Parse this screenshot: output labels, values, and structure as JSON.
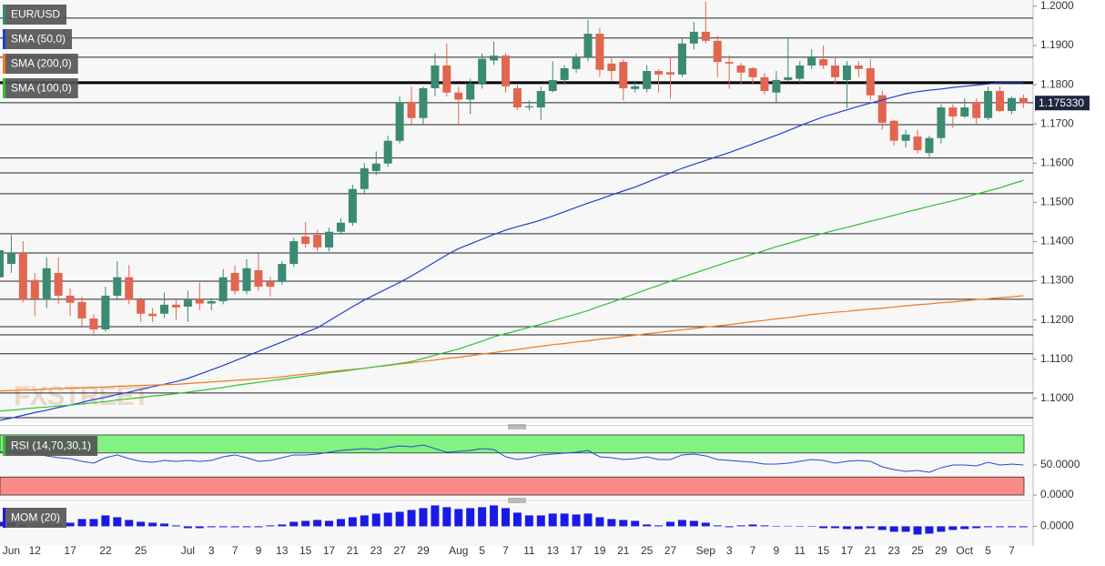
{
  "chart_data": [
    {
      "type": "candlestick",
      "title": "EUR/USD",
      "categories": [
        null,
        "Jun",
        null,
        "12",
        null,
        null,
        "17",
        null,
        null,
        "22",
        null,
        null,
        "25",
        null,
        null,
        null,
        "Jul",
        null,
        "3",
        null,
        "7",
        null,
        "9",
        null,
        "13",
        null,
        "15",
        null,
        "17",
        null,
        "21",
        null,
        "23",
        null,
        "27",
        null,
        "29",
        null,
        null,
        "Aug",
        null,
        "5",
        null,
        "7",
        null,
        "11",
        null,
        "13",
        null,
        "17",
        null,
        "19",
        null,
        "21",
        null,
        "25",
        null,
        "27",
        null,
        null,
        "Sep",
        null,
        "3",
        null,
        "7",
        null,
        "9",
        null,
        "11",
        null,
        "15",
        null,
        "17",
        null,
        "21",
        null,
        "23",
        null,
        "25",
        null,
        "29",
        null,
        "Oct",
        null,
        "5",
        null,
        "7",
        null
      ],
      "open": [
        1.1309,
        1.1343,
        1.1371,
        1.1302,
        1.1255,
        1.132,
        1.1262,
        1.1246,
        1.1204,
        1.1176,
        1.1262,
        1.1309,
        1.1251,
        1.1216,
        1.1216,
        1.1239,
        1.1234,
        1.1253,
        1.1242,
        1.1248,
        1.132,
        1.1274,
        1.1327,
        1.1297,
        1.1297,
        1.1343,
        1.1413,
        1.1417,
        1.1385,
        1.1425,
        1.1448,
        1.1534,
        1.158,
        1.1599,
        1.1657,
        1.1756,
        1.1715,
        1.1791,
        1.1849,
        1.178,
        1.1762,
        1.1803,
        1.1862,
        1.1874,
        1.1791,
        1.1742,
        1.1742,
        1.1784,
        1.1812,
        1.184,
        1.187,
        1.193,
        1.1854,
        1.1858,
        1.1789,
        1.1789,
        1.1835,
        1.1832,
        1.1826,
        1.1905,
        1.1935,
        1.1912,
        1.1858,
        1.1849,
        1.1842,
        1.1819,
        1.178,
        1.1812,
        1.1815,
        1.1849,
        1.1865,
        1.1849,
        1.1812,
        1.1849,
        1.1842,
        1.1773,
        1.1708,
        1.1657,
        1.1668,
        1.1626,
        1.1664,
        1.1742,
        1.1719,
        1.1756,
        1.1715,
        1.1784,
        1.1733,
        1.1766
      ],
      "high": [
        1.1413,
        1.1417,
        1.1401,
        1.132,
        1.136,
        1.136,
        1.128,
        1.126,
        1.1215,
        1.1285,
        1.135,
        1.134,
        1.1258,
        1.123,
        1.127,
        1.1255,
        1.1275,
        1.1295,
        1.1255,
        1.133,
        1.134,
        1.1355,
        1.137,
        1.131,
        1.135,
        1.141,
        1.145,
        1.143,
        1.1435,
        1.146,
        1.1545,
        1.16,
        1.163,
        1.167,
        1.177,
        1.1795,
        1.1795,
        1.188,
        1.1905,
        1.1795,
        1.1815,
        1.188,
        1.191,
        1.188,
        1.18,
        1.176,
        1.1795,
        1.186,
        1.185,
        1.188,
        1.1965,
        1.1945,
        1.187,
        1.1865,
        1.181,
        1.185,
        1.184,
        1.187,
        1.192,
        1.196,
        1.2011,
        1.1925,
        1.1875,
        1.1855,
        1.1845,
        1.183,
        1.1835,
        1.192,
        1.186,
        1.189,
        1.19,
        1.187,
        1.186,
        1.186,
        1.1865,
        1.1785,
        1.171,
        1.1685,
        1.1685,
        1.167,
        1.175,
        1.175,
        1.1765,
        1.1765,
        1.1795,
        1.1795,
        1.177,
        1.1775
      ],
      "low": [
        1.1285,
        1.132,
        1.1245,
        1.121,
        1.123,
        1.124,
        1.121,
        1.1185,
        1.1165,
        1.117,
        1.125,
        1.124,
        1.1195,
        1.1195,
        1.1205,
        1.12,
        1.1195,
        1.1225,
        1.1225,
        1.124,
        1.1265,
        1.1265,
        1.1275,
        1.126,
        1.129,
        1.1335,
        1.1385,
        1.1375,
        1.1375,
        1.142,
        1.144,
        1.152,
        1.157,
        1.159,
        1.165,
        1.17,
        1.17,
        1.177,
        1.177,
        1.17,
        1.1725,
        1.179,
        1.185,
        1.178,
        1.1735,
        1.1735,
        1.171,
        1.178,
        1.18,
        1.183,
        1.186,
        1.182,
        1.181,
        1.176,
        1.178,
        1.178,
        1.178,
        1.1765,
        1.182,
        1.189,
        1.1905,
        1.182,
        1.179,
        1.18,
        1.18,
        1.1775,
        1.1755,
        1.181,
        1.1805,
        1.184,
        1.184,
        1.18,
        1.174,
        1.182,
        1.176,
        1.1685,
        1.1645,
        1.164,
        1.1625,
        1.1615,
        1.165,
        1.169,
        1.1715,
        1.17,
        1.171,
        1.173,
        1.1725,
        1.174
      ],
      "close": [
        1.1378,
        1.1371,
        1.1251,
        1.1255,
        1.1332,
        1.1262,
        1.1244,
        1.1204,
        1.1176,
        1.1262,
        1.1309,
        1.1251,
        1.1216,
        1.121,
        1.1239,
        1.1232,
        1.1251,
        1.1242,
        1.1248,
        1.1309,
        1.1274,
        1.1332,
        1.1285,
        1.1285,
        1.1343,
        1.1401,
        1.1394,
        1.1385,
        1.1425,
        1.1448,
        1.1534,
        1.1587,
        1.1599,
        1.1657,
        1.1756,
        1.1715,
        1.1791,
        1.1849,
        1.178,
        1.1762,
        1.1803,
        1.1866,
        1.1874,
        1.1796,
        1.1742,
        1.1745,
        1.1784,
        1.1812,
        1.1842,
        1.187,
        1.193,
        1.1838,
        1.1835,
        1.1791,
        1.1796,
        1.1835,
        1.1826,
        1.1826,
        1.1905,
        1.1935,
        1.1912,
        1.1858,
        1.1854,
        1.1831,
        1.1819,
        1.1784,
        1.1812,
        1.1819,
        1.1849,
        1.1872,
        1.1849,
        1.1819,
        1.1849,
        1.184,
        1.1773,
        1.1703,
        1.1657,
        1.1673,
        1.1633,
        1.1664,
        1.1742,
        1.1719,
        1.1742,
        1.1715,
        1.1784,
        1.1733,
        1.1766,
        1.1753
      ],
      "up_color": "#3b8a72",
      "down_color": "#e2654f",
      "series": [
        {
          "name": "SMA (50,0)",
          "color": "#1f3fd0",
          "values": [
            1.0944,
            1.095,
            1.0957,
            1.0964,
            1.097,
            1.0977,
            1.0983,
            1.099,
            1.0997,
            1.1003,
            1.101,
            1.1016,
            1.1023,
            1.103,
            1.1036,
            1.1043,
            1.1051,
            1.1062,
            1.1073,
            1.1084,
            1.1096,
            1.1108,
            1.112,
            1.1132,
            1.1144,
            1.1156,
            1.1168,
            1.118,
            1.1198,
            1.1216,
            1.1234,
            1.1251,
            1.1266,
            1.1281,
            1.1296,
            1.1312,
            1.133,
            1.1348,
            1.1366,
            1.1382,
            1.1394,
            1.1406,
            1.1418,
            1.1429,
            1.1438,
            1.1446,
            1.1455,
            1.1465,
            1.1476,
            1.1487,
            1.1498,
            1.1508,
            1.1519,
            1.1529,
            1.1539,
            1.1551,
            1.1563,
            1.1575,
            1.1587,
            1.1597,
            1.1607,
            1.1617,
            1.1627,
            1.1638,
            1.1649,
            1.166,
            1.1671,
            1.1683,
            1.1695,
            1.1707,
            1.1718,
            1.1727,
            1.1736,
            1.1745,
            1.1753,
            1.1761,
            1.1769,
            1.1777,
            1.1782,
            1.1786,
            1.1789,
            1.1793,
            1.1796,
            1.1799,
            1.1802,
            1.1805,
            1.1805,
            1.1805
          ]
        },
        {
          "name": "SMA (200,0)",
          "color": "#ef7a22",
          "values": [
            1.1019,
            1.102,
            1.1021,
            1.1022,
            1.1024,
            1.1025,
            1.1026,
            1.1027,
            1.1028,
            1.1029,
            1.1031,
            1.1032,
            1.1033,
            1.1034,
            1.1035,
            1.1036,
            1.1038,
            1.104,
            1.1042,
            1.1044,
            1.1046,
            1.1048,
            1.105,
            1.1052,
            1.1055,
            1.1059,
            1.1062,
            1.1065,
            1.1068,
            1.1071,
            1.1074,
            1.1077,
            1.1081,
            1.1084,
            1.1088,
            1.1091,
            1.1095,
            1.1098,
            1.1102,
            1.1105,
            1.1109,
            1.1113,
            1.1117,
            1.1121,
            1.1125,
            1.1129,
            1.1133,
            1.1137,
            1.114,
            1.1144,
            1.1147,
            1.1151,
            1.1154,
            1.1158,
            1.1161,
            1.1165,
            1.1168,
            1.1172,
            1.1175,
            1.1178,
            1.1182,
            1.1185,
            1.1188,
            1.1192,
            1.1196,
            1.1199,
            1.1203,
            1.1206,
            1.121,
            1.1214,
            1.1217,
            1.122,
            1.1222,
            1.1225,
            1.1228,
            1.123,
            1.1233,
            1.1236,
            1.1239,
            1.1241,
            1.1244,
            1.1246,
            1.1249,
            1.1252,
            1.1254,
            1.1257,
            1.1259,
            1.1262
          ]
        },
        {
          "name": "SMA (100,0)",
          "color": "#35c02e",
          "values": [
            1.0968,
            1.097,
            1.0973,
            1.0976,
            1.0978,
            1.0981,
            1.0983,
            1.0986,
            1.0989,
            1.0992,
            1.0996,
            1.0999,
            1.1002,
            1.1006,
            1.1009,
            1.1012,
            1.1016,
            1.102,
            1.1024,
            1.1028,
            1.1033,
            1.1037,
            1.1041,
            1.1045,
            1.1049,
            1.1053,
            1.1057,
            1.1061,
            1.1065,
            1.1069,
            1.1073,
            1.1077,
            1.1081,
            1.1085,
            1.1089,
            1.1094,
            1.1102,
            1.111,
            1.1118,
            1.1126,
            1.1136,
            1.1146,
            1.1157,
            1.1165,
            1.1173,
            1.1181,
            1.1189,
            1.1198,
            1.1207,
            1.1215,
            1.1224,
            1.1235,
            1.1245,
            1.1256,
            1.1267,
            1.1278,
            1.1288,
            1.1299,
            1.1309,
            1.1319,
            1.1329,
            1.1339,
            1.1349,
            1.1358,
            1.1368,
            1.1377,
            1.1387,
            1.1395,
            1.1404,
            1.1413,
            1.1421,
            1.1429,
            1.1436,
            1.1444,
            1.1452,
            1.1459,
            1.1467,
            1.1475,
            1.1482,
            1.149,
            1.1497,
            1.1504,
            1.1512,
            1.1521,
            1.1529,
            1.1537,
            1.1547,
            1.1556
          ]
        }
      ],
      "levels": [
        1.197,
        1.1919,
        1.187,
        1.1754,
        1.1698,
        1.1613,
        1.1575,
        1.1522,
        1.142,
        1.1371,
        1.1299,
        1.1253,
        1.1183,
        1.1162,
        1.1114,
        1.1014,
        1.0951
      ],
      "key_level": 1.1805,
      "ylim": [
        1.0937,
        1.2016
      ],
      "yticks": [
        {
          "value": 1.1,
          "label": "1.1000"
        },
        {
          "value": 1.11,
          "label": "1.1100"
        },
        {
          "value": 1.12,
          "label": "1.1200"
        },
        {
          "value": 1.13,
          "label": "1.1300"
        },
        {
          "value": 1.14,
          "label": "1.1400"
        },
        {
          "value": 1.15,
          "label": "1.1500"
        },
        {
          "value": 1.16,
          "label": "1.1600"
        },
        {
          "value": 1.17,
          "label": "1.1700"
        },
        {
          "value": 1.18,
          "label": "1.1800"
        },
        {
          "value": 1.19,
          "label": "1.1900"
        },
        {
          "value": 1.2,
          "label": "1.2000"
        }
      ],
      "last_price": {
        "value": 1.17533,
        "label": "1.175330"
      },
      "watermark": "FXSTREET"
    },
    {
      "type": "line",
      "title": "RSI (14,70,30,1)",
      "color": "#2848d0",
      "values": [
        71.2,
        74.2,
        66.7,
        69.7,
        65.2,
        62.1,
        60.6,
        56.1,
        53.0,
        62.1,
        66.7,
        60.6,
        56.1,
        54.5,
        57.6,
        56.1,
        57.6,
        56.1,
        57.6,
        63.6,
        66.7,
        62.1,
        56.1,
        57.6,
        62.1,
        66.7,
        66.7,
        68.2,
        71.2,
        74.2,
        75.8,
        77.3,
        75.8,
        78.8,
        81.8,
        80.3,
        83.3,
        77.3,
        71.2,
        72.7,
        74.2,
        77.3,
        75.8,
        63.6,
        59.1,
        62.1,
        66.7,
        68.2,
        69.7,
        71.2,
        74.2,
        63.6,
        62.1,
        59.1,
        60.6,
        63.6,
        59.1,
        59.1,
        66.7,
        68.2,
        65.2,
        59.1,
        57.6,
        56.1,
        54.5,
        51.5,
        51.5,
        53.0,
        56.1,
        59.1,
        57.6,
        53.0,
        56.1,
        57.6,
        56.1,
        47.0,
        42.4,
        39.4,
        40.9,
        37.9,
        45.5,
        50.0,
        50.0,
        48.5,
        54.5,
        50.0,
        51.5,
        50.0
      ],
      "bands": [
        {
          "range": [
            70,
            100
          ],
          "color": "#82f283"
        },
        {
          "range": [
            0,
            30
          ],
          "color": "#fa8a86"
        }
      ],
      "ylim": [
        -6,
        109
      ],
      "yticks": [
        {
          "value": 50,
          "label": "50.0000"
        },
        {
          "value": 0,
          "label": "0.0000"
        }
      ]
    },
    {
      "type": "bar",
      "title": "MOM (20)",
      "color": "#1a1ae6",
      "values": [
        0.0104,
        0.0083,
        0.0042,
        0.0005,
        0.0021,
        0.0042,
        0.0083,
        0.0167,
        0.0167,
        0.025,
        0.0208,
        0.0146,
        0.0104,
        0.0083,
        0.0063,
        0.0021,
        -0.0042,
        -0.0042,
        -0.0021,
        -0.0021,
        -0.0021,
        -0.0021,
        -0.0021,
        0.0021,
        0.0042,
        0.0104,
        0.0125,
        0.0146,
        0.0125,
        0.0167,
        0.0208,
        0.025,
        0.0292,
        0.0313,
        0.0333,
        0.0375,
        0.0417,
        0.0479,
        0.0438,
        0.0396,
        0.0417,
        0.0438,
        0.0479,
        0.0417,
        0.0313,
        0.025,
        0.025,
        0.0292,
        0.0292,
        0.0271,
        0.0292,
        0.0208,
        0.0167,
        0.0146,
        0.0125,
        0.0042,
        0.0021,
        0.0104,
        0.0146,
        0.0125,
        0.0083,
        0.0021,
        -0.0021,
        0.0021,
        0.0042,
        0.0021,
        0.0005,
        0.001,
        0.0005,
        0.0005,
        -0.0042,
        -0.0042,
        -0.0063,
        -0.0063,
        -0.0042,
        -0.0083,
        -0.0125,
        -0.0125,
        -0.0188,
        -0.0167,
        -0.0125,
        -0.0083,
        -0.0063,
        -0.0042,
        -0.0021,
        -0.0021,
        -0.0021,
        -0.0021
      ],
      "ylim": [
        -0.045,
        0.055
      ],
      "yticks": [
        {
          "value": 0,
          "label": "0.0000"
        }
      ]
    }
  ]
}
